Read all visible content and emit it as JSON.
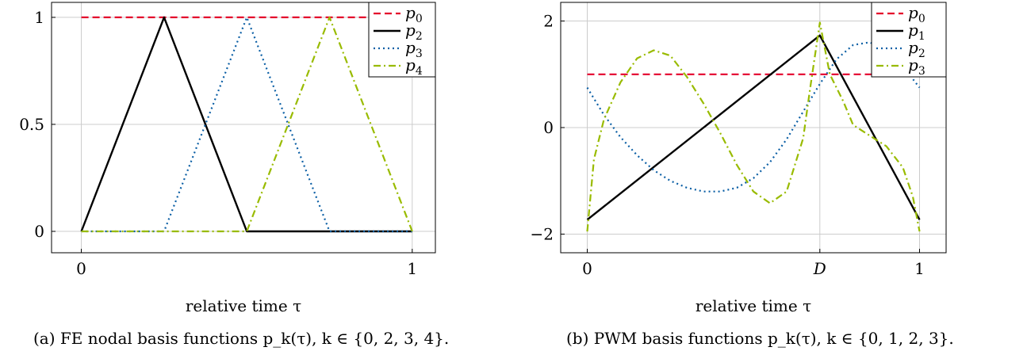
{
  "colors": {
    "red": "#e4002b",
    "black": "#000000",
    "blue": "#0b5fa5",
    "green": "#99bb00",
    "grid": "#cccccc"
  },
  "chart_data": [
    {
      "type": "line",
      "xlabel": "relative time τ",
      "caption": "(a) FE nodal basis functions p_k(τ), k ∈ {0, 2, 3, 4}.",
      "xlim": [
        -0.09,
        1.07
      ],
      "ylim": [
        -0.1,
        1.07
      ],
      "xticks": [
        0,
        1
      ],
      "xtick_labels": [
        "0",
        "1"
      ],
      "yticks": [
        0,
        0.5,
        1
      ],
      "ytick_labels": [
        "0",
        "0.5",
        "1"
      ],
      "grid": true,
      "legend_position": "top-right",
      "series": [
        {
          "name": "p0",
          "sym": "p",
          "sub": "0",
          "color": "red",
          "dash": "dashed",
          "x": [
            0,
            1
          ],
          "y": [
            1,
            1
          ]
        },
        {
          "name": "p2",
          "sym": "p",
          "sub": "2",
          "color": "black",
          "dash": "solid",
          "x": [
            0,
            0.25,
            0.5,
            1
          ],
          "y": [
            0,
            1,
            0,
            0
          ]
        },
        {
          "name": "p3",
          "sym": "p",
          "sub": "3",
          "color": "blue",
          "dash": "dotted",
          "x": [
            0,
            0.25,
            0.5,
            0.75,
            1
          ],
          "y": [
            0,
            0,
            1,
            0,
            0
          ]
        },
        {
          "name": "p4",
          "sym": "p",
          "sub": "4",
          "color": "green",
          "dash": "dashdot",
          "x": [
            0,
            0.5,
            0.75,
            1
          ],
          "y": [
            0,
            0,
            1,
            0
          ]
        }
      ]
    },
    {
      "type": "line",
      "xlabel": "relative time τ",
      "caption": "(b) PWM basis functions p_k(τ), k ∈ {0, 1, 2, 3}.",
      "xlim": [
        -0.08,
        1.08
      ],
      "ylim": [
        -2.35,
        2.35
      ],
      "duty_cycle_D": 0.7,
      "xticks": [
        0,
        0.7,
        1
      ],
      "xtick_labels": [
        "0",
        "D",
        "1"
      ],
      "yticks": [
        -2,
        0,
        2
      ],
      "ytick_labels": [
        "−2",
        "0",
        "2"
      ],
      "grid": true,
      "legend_position": "top-right",
      "series": [
        {
          "name": "p0",
          "sym": "p",
          "sub": "0",
          "color": "red",
          "dash": "dashed",
          "x": [
            0,
            1
          ],
          "y": [
            1,
            1
          ]
        },
        {
          "name": "p1",
          "sym": "p",
          "sub": "1",
          "color": "black",
          "dash": "solid",
          "x": [
            0,
            0.7,
            1
          ],
          "y": [
            -1.73,
            1.73,
            -1.73
          ]
        },
        {
          "name": "p2",
          "sym": "p",
          "sub": "2",
          "color": "blue",
          "dash": "dotted",
          "x": [
            0,
            0.05,
            0.1,
            0.15,
            0.2,
            0.25,
            0.3,
            0.35,
            0.4,
            0.45,
            0.5,
            0.55,
            0.6,
            0.65,
            0.7,
            0.75,
            0.8,
            0.85,
            0.9,
            0.95,
            1
          ],
          "y": [
            0.75,
            0.24,
            -0.18,
            -0.52,
            -0.8,
            -1.0,
            -1.13,
            -1.2,
            -1.2,
            -1.13,
            -0.95,
            -0.65,
            -0.22,
            0.3,
            0.82,
            1.28,
            1.55,
            1.6,
            1.45,
            1.15,
            0.75
          ]
        },
        {
          "name": "p3",
          "sym": "p",
          "sub": "3",
          "color": "green",
          "dash": "dashdot",
          "x": [
            0,
            0.02,
            0.05,
            0.1,
            0.15,
            0.2,
            0.25,
            0.3,
            0.35,
            0.4,
            0.45,
            0.5,
            0.55,
            0.6,
            0.65,
            0.67,
            0.7,
            0.73,
            0.77,
            0.8,
            0.85,
            0.9,
            0.95,
            0.98,
            1
          ],
          "y": [
            -1.95,
            -0.6,
            0.15,
            0.85,
            1.3,
            1.45,
            1.35,
            0.95,
            0.45,
            -0.1,
            -0.7,
            -1.2,
            -1.42,
            -1.2,
            -0.2,
            0.7,
            1.97,
            1.0,
            0.5,
            0.05,
            -0.15,
            -0.35,
            -0.75,
            -1.3,
            -1.95
          ]
        }
      ]
    }
  ]
}
